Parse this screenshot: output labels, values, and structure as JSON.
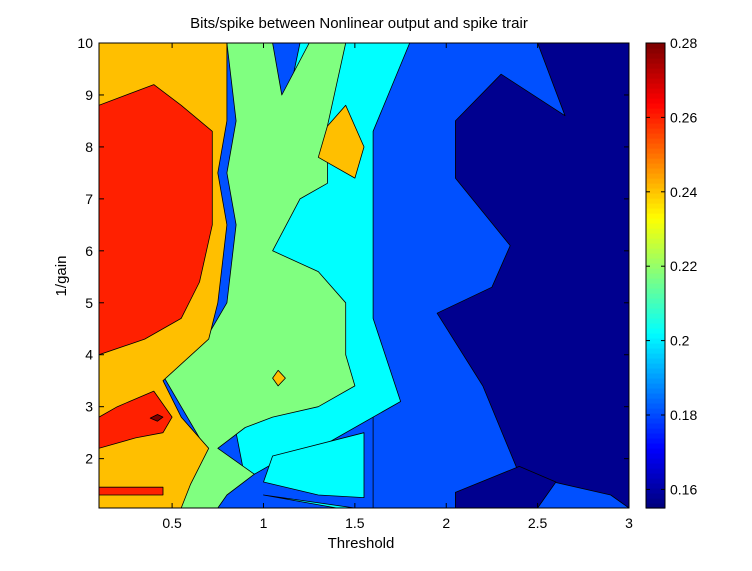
{
  "chart_data": {
    "type": "contour",
    "title": "Bits/spike between Nonlinear output and spike trair",
    "xlabel": "Threshold",
    "ylabel": "1/gain",
    "xlim": [
      0.1,
      3
    ],
    "ylim": [
      1.05,
      10
    ],
    "x_ticks": [
      0.5,
      1,
      1.5,
      2,
      2.5,
      3
    ],
    "y_ticks": [
      2,
      3,
      4,
      5,
      6,
      7,
      8,
      9,
      10
    ],
    "x_tick_labels": [
      "0.5",
      "1",
      "1.5",
      "2",
      "2.5",
      "3"
    ],
    "y_tick_labels": [
      "2",
      "3",
      "4",
      "5",
      "6",
      "7",
      "8",
      "9",
      "10"
    ],
    "colorbar": {
      "range": [
        0.155,
        0.28
      ],
      "ticks": [
        0.16,
        0.18,
        0.2,
        0.22,
        0.24,
        0.26,
        0.28
      ],
      "tick_labels": [
        "0.16",
        "0.18",
        "0.2",
        "0.22",
        "0.24",
        "0.26",
        "0.28"
      ],
      "colormap": "jet"
    },
    "levels": [
      {
        "value": 0.155,
        "color": "#00008f"
      },
      {
        "value": 0.17,
        "color": "#0050ff"
      },
      {
        "value": 0.195,
        "color": "#00ffff"
      },
      {
        "value": 0.21,
        "color": "#80ff80"
      },
      {
        "value": 0.235,
        "color": "#ffbf00"
      },
      {
        "value": 0.255,
        "color": "#ff2000"
      },
      {
        "value": 0.275,
        "color": "#800000"
      }
    ],
    "regions": [
      {
        "level": 1,
        "points": [
          [
            1.6,
            10
          ],
          [
            3,
            10
          ],
          [
            3,
            1.05
          ],
          [
            1.6,
            1.05
          ]
        ]
      },
      {
        "level": 0,
        "points": [
          [
            2.5,
            10
          ],
          [
            3,
            10
          ],
          [
            3,
            1.05
          ],
          [
            2.9,
            1.3
          ],
          [
            2.4,
            1.7
          ],
          [
            2.2,
            3.4
          ],
          [
            1.95,
            4.8
          ],
          [
            2.25,
            5.3
          ],
          [
            2.35,
            6.1
          ],
          [
            2.05,
            7.4
          ],
          [
            2.05,
            8.5
          ],
          [
            2.3,
            9.4
          ],
          [
            2.65,
            8.6
          ]
        ]
      },
      {
        "level": 0,
        "points": [
          [
            2.05,
            1.05
          ],
          [
            2.5,
            1.05
          ],
          [
            2.6,
            1.55
          ],
          [
            2.4,
            1.85
          ],
          [
            2.05,
            1.35
          ]
        ]
      },
      {
        "level": 2,
        "points": [
          [
            1.2,
            10
          ],
          [
            1.8,
            10
          ],
          [
            1.6,
            8.3
          ],
          [
            1.6,
            4.7
          ],
          [
            1.75,
            3.1
          ],
          [
            1.35,
            2.3
          ],
          [
            1.1,
            2.0
          ],
          [
            0.9,
            1.6
          ],
          [
            0.85,
            2.5
          ],
          [
            1.0,
            3.0
          ],
          [
            1.4,
            3.4
          ],
          [
            1.3,
            5.0
          ],
          [
            1.05,
            5.5
          ],
          [
            1.05,
            7.5
          ]
        ]
      },
      {
        "level": 2,
        "points": [
          [
            1.55,
            2.5
          ],
          [
            1.05,
            2.05
          ],
          [
            1.0,
            1.55
          ],
          [
            1.3,
            1.3
          ],
          [
            1.55,
            1.25
          ]
        ]
      },
      {
        "level": 2,
        "points": [
          [
            1.0,
            1.3
          ],
          [
            1.4,
            1.05
          ],
          [
            1.5,
            1.05
          ]
        ]
      },
      {
        "level": 3,
        "points": [
          [
            0.8,
            10
          ],
          [
            1.05,
            10
          ],
          [
            1.1,
            9.0
          ],
          [
            1.25,
            10
          ],
          [
            1.45,
            10
          ],
          [
            1.35,
            8.4
          ],
          [
            1.35,
            7.3
          ],
          [
            1.2,
            7.0
          ],
          [
            1.05,
            6.0
          ],
          [
            1.3,
            5.6
          ],
          [
            1.45,
            5.0
          ],
          [
            1.45,
            4.0
          ],
          [
            1.5,
            3.4
          ],
          [
            1.3,
            3.0
          ],
          [
            1.05,
            2.8
          ],
          [
            0.9,
            2.6
          ],
          [
            0.75,
            2.2
          ],
          [
            0.95,
            1.7
          ],
          [
            0.8,
            1.3
          ],
          [
            0.75,
            1.05
          ],
          [
            0.55,
            1.05
          ],
          [
            0.55,
            1.6
          ],
          [
            0.65,
            2.4
          ],
          [
            0.55,
            3.0
          ],
          [
            0.45,
            3.6
          ],
          [
            0.7,
            4.4
          ],
          [
            0.8,
            5.0
          ],
          [
            0.85,
            6.5
          ],
          [
            0.8,
            7.5
          ],
          [
            0.85,
            8.5
          ]
        ]
      },
      {
        "level": 4,
        "points": [
          [
            0.1,
            1.05
          ],
          [
            0.55,
            1.05
          ],
          [
            0.6,
            1.5
          ],
          [
            0.7,
            2.2
          ],
          [
            0.55,
            2.8
          ],
          [
            0.45,
            3.5
          ],
          [
            0.7,
            4.3
          ],
          [
            0.75,
            5.0
          ],
          [
            0.8,
            6.5
          ],
          [
            0.75,
            7.5
          ],
          [
            0.8,
            8.5
          ],
          [
            0.8,
            10
          ],
          [
            0.1,
            10
          ]
        ]
      },
      {
        "level": 4,
        "points": [
          [
            1.3,
            7.8
          ],
          [
            1.35,
            8.4
          ],
          [
            1.45,
            8.8
          ],
          [
            1.55,
            8.0
          ],
          [
            1.5,
            7.4
          ]
        ]
      },
      {
        "level": 4,
        "points": [
          [
            1.05,
            3.55
          ],
          [
            1.08,
            3.7
          ],
          [
            1.12,
            3.55
          ],
          [
            1.08,
            3.4
          ]
        ]
      },
      {
        "level": 5,
        "points": [
          [
            0.1,
            4.0
          ],
          [
            0.35,
            4.3
          ],
          [
            0.55,
            4.7
          ],
          [
            0.65,
            5.4
          ],
          [
            0.72,
            6.5
          ],
          [
            0.72,
            7.5
          ],
          [
            0.72,
            8.3
          ],
          [
            0.55,
            8.8
          ],
          [
            0.4,
            9.2
          ],
          [
            0.1,
            8.8
          ]
        ]
      },
      {
        "level": 5,
        "points": [
          [
            0.1,
            2.2
          ],
          [
            0.3,
            2.4
          ],
          [
            0.45,
            2.5
          ],
          [
            0.5,
            2.8
          ],
          [
            0.4,
            3.3
          ],
          [
            0.2,
            3.0
          ],
          [
            0.1,
            2.8
          ]
        ]
      },
      {
        "level": 5,
        "points": [
          [
            0.1,
            1.3
          ],
          [
            0.45,
            1.3
          ],
          [
            0.45,
            1.45
          ],
          [
            0.1,
            1.45
          ]
        ]
      },
      {
        "level": 6,
        "points": [
          [
            0.38,
            2.78
          ],
          [
            0.42,
            2.85
          ],
          [
            0.45,
            2.8
          ],
          [
            0.42,
            2.72
          ]
        ]
      }
    ]
  }
}
